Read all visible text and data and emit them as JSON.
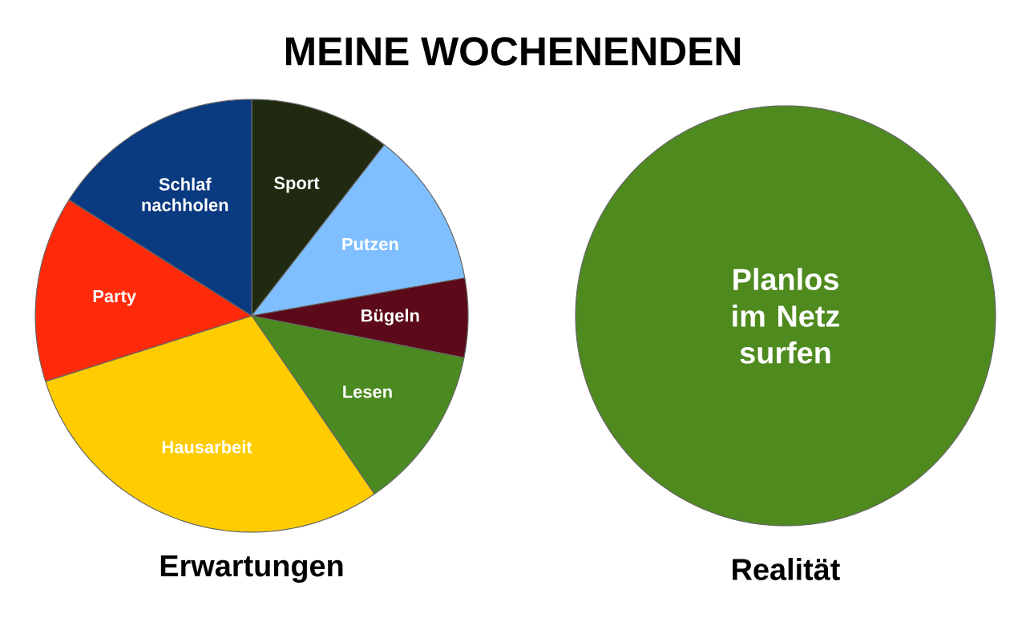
{
  "chart_data": [
    {
      "type": "pie",
      "title": "MEINE WOCHENENDEN",
      "xlabel": "Erwartungen",
      "categories": [
        "Sport",
        "Putzen",
        "Bügeln",
        "Lesen",
        "Hausarbeit",
        "Party",
        "Schlaf nachholen"
      ],
      "values": [
        10.5,
        11.7,
        5.9,
        12.3,
        29.7,
        13.9,
        16.0
      ],
      "colors": [
        "#1f2a10",
        "#80bfff",
        "#5c0a1a",
        "#4a8a20",
        "#ffcc00",
        "#ff2a0a",
        "#0a3a80"
      ]
    },
    {
      "type": "pie",
      "xlabel": "Realität",
      "categories": [
        "Planlos im Netz surfen"
      ],
      "values": [
        100
      ],
      "colors": [
        "#4e8a1e"
      ]
    }
  ]
}
